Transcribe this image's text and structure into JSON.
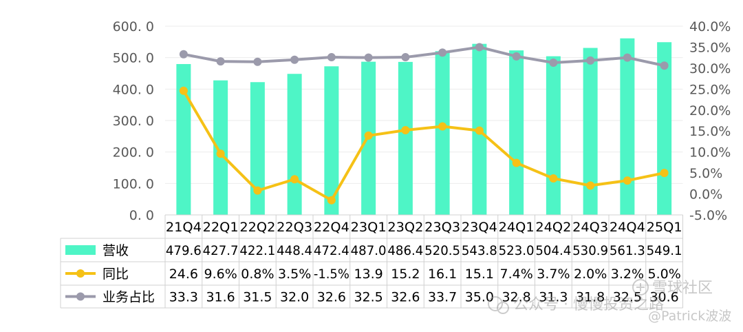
{
  "chart_data": {
    "type": "bar",
    "categories": [
      "21Q4",
      "22Q1",
      "22Q2",
      "22Q3",
      "22Q4",
      "23Q1",
      "23Q2",
      "23Q3",
      "23Q4",
      "24Q1",
      "24Q2",
      "24Q3",
      "24Q4",
      "25Q1"
    ],
    "category_labels": [
      "21Q4",
      "22Q1",
      "22Q2",
      "22Q3",
      "22Q4",
      "23Q1",
      "23Q2",
      "23Q3",
      "23Q4",
      "24Q1",
      "24Q2",
      "24Q3",
      "24Q4",
      "25Q1"
    ],
    "y_left": {
      "ylim": [
        0,
        600
      ],
      "ticks": [
        "600. 0",
        "500. 0",
        "400. 0",
        "300. 0",
        "200. 0",
        "100. 0",
        "0. 0"
      ]
    },
    "y_right": {
      "ylim": [
        -0.05,
        0.4
      ],
      "ticks": [
        "40.0%",
        "35.0%",
        "30.0%",
        "25.0%",
        "20.0%",
        "15.0%",
        "10.0%",
        "5.0%",
        "0.0%",
        "-5.0%"
      ]
    },
    "grid": true,
    "legend": "table-bottom",
    "series": [
      {
        "name": "营收",
        "type": "bar",
        "axis": "left",
        "color": "#4ef5c6",
        "values": [
          479.6,
          427.7,
          422.1,
          448.4,
          472.4,
          487.0,
          486.4,
          520.5,
          543.8,
          523.0,
          504.4,
          530.9,
          561.3,
          549.1
        ],
        "labels": [
          "479.6",
          "427.7",
          "422.1",
          "448.4",
          "472.4",
          "487.0",
          "486.4",
          "520.5",
          "543.8",
          "523.0",
          "504.4",
          "530.9",
          "561.3",
          "549.1"
        ]
      },
      {
        "name": "同比",
        "type": "line",
        "axis": "right",
        "color": "#f5c116",
        "values": [
          0.246,
          0.096,
          0.008,
          0.035,
          -0.015,
          0.139,
          0.152,
          0.161,
          0.151,
          0.074,
          0.037,
          0.02,
          0.032,
          0.05
        ],
        "labels": [
          "24.6",
          "9.6%",
          "0.8%",
          "3.5%",
          "-1.5%",
          "13.9",
          "15.2",
          "16.1",
          "15.1",
          "7.4%",
          "3.7%",
          "2.0%",
          "3.2%",
          "5.0%"
        ]
      },
      {
        "name": "业务占比",
        "type": "line",
        "axis": "right",
        "color": "#9b9aab",
        "values": [
          0.333,
          0.316,
          0.315,
          0.32,
          0.326,
          0.325,
          0.326,
          0.337,
          0.35,
          0.328,
          0.313,
          0.318,
          0.325,
          0.306
        ],
        "labels": [
          "33.3",
          "31.6",
          "31.5",
          "32.0",
          "32.6",
          "32.5",
          "32.6",
          "33.7",
          "35.0",
          "32.8",
          "31.3",
          "31.8",
          "32.5",
          "30.6"
        ]
      }
    ]
  },
  "watermarks": [
    "公众号 · 慢慢投资之路",
    "雪球社区",
    "@Patrick波波"
  ],
  "watermark_icons": [
    "wechat-logo-icon",
    "xueqiu-logo-icon"
  ]
}
